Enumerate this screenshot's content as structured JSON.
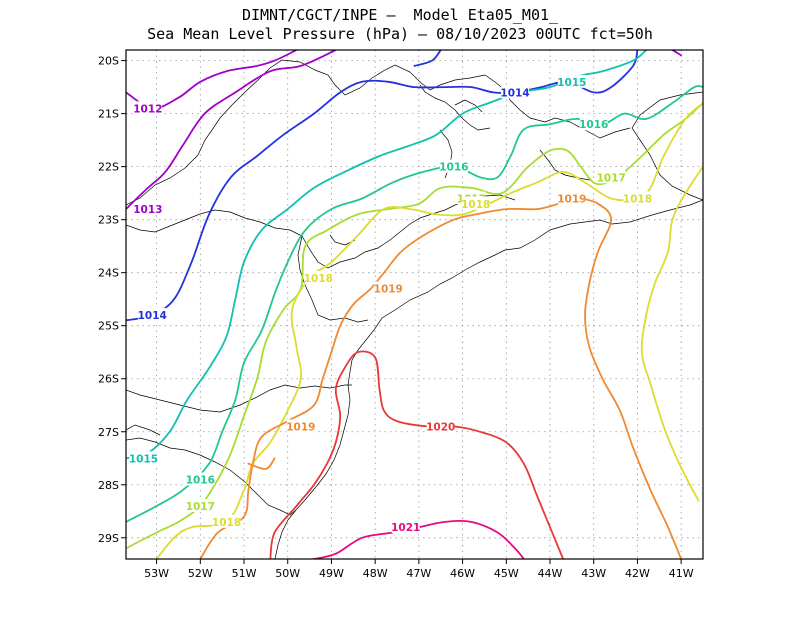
{
  "title_line1": "DIMNT/CGCT/INPE –  Model Eta05_M01_",
  "title_line2": "Sea Mean Level Pressure (hPa) – 08/10/2023 00UTC fct=50h",
  "map": {
    "lon_range": [
      -53.7,
      -40.5
    ],
    "lat_range": [
      -29.4,
      -19.8
    ],
    "lon_ticks": [
      "53W",
      "52W",
      "51W",
      "50W",
      "49W",
      "48W",
      "47W",
      "46W",
      "45W",
      "44W",
      "43W",
      "42W",
      "41W"
    ],
    "lat_ticks": [
      "20S",
      "21S",
      "22S",
      "23S",
      "24S",
      "25S",
      "26S",
      "27S",
      "28S",
      "29S"
    ],
    "grid": true
  },
  "contours": [
    {
      "value": "1012",
      "color": "#a100c8",
      "lines": [
        [
          [
            -53.7,
            -20.6
          ],
          [
            -53.1,
            -20.9
          ],
          [
            -52.5,
            -20.7
          ],
          [
            -52.0,
            -20.4
          ],
          [
            -51.4,
            -20.2
          ],
          [
            -50.7,
            -20.1
          ],
          [
            -50.3,
            -20.0
          ],
          [
            -49.8,
            -19.8
          ]
        ]
      ],
      "labels": [
        [
          -53.2,
          -20.9
        ]
      ]
    },
    {
      "value": "1013",
      "color": "#a100c8",
      "lines": [
        [
          [
            -53.7,
            -22.8
          ],
          [
            -53.2,
            -22.4
          ],
          [
            -52.8,
            -22.1
          ],
          [
            -52.4,
            -21.6
          ],
          [
            -51.9,
            -21.0
          ],
          [
            -51.2,
            -20.6
          ],
          [
            -50.4,
            -20.2
          ],
          [
            -49.7,
            -20.1
          ],
          [
            -48.9,
            -19.8
          ]
        ],
        [
          [
            -41.2,
            -19.8
          ],
          [
            -41.0,
            -19.9
          ]
        ]
      ],
      "labels": [
        [
          -53.2,
          -22.8
        ]
      ]
    },
    {
      "value": "1014",
      "color": "#2233dd",
      "lines": [
        [
          [
            -53.7,
            -24.9
          ],
          [
            -53.1,
            -24.8
          ],
          [
            -52.6,
            -24.5
          ],
          [
            -52.2,
            -23.8
          ],
          [
            -51.8,
            -22.9
          ],
          [
            -51.3,
            -22.2
          ],
          [
            -50.7,
            -21.8
          ],
          [
            -50.1,
            -21.4
          ],
          [
            -49.4,
            -21.0
          ],
          [
            -48.8,
            -20.6
          ],
          [
            -48.3,
            -20.4
          ],
          [
            -47.7,
            -20.4
          ],
          [
            -47.1,
            -20.5
          ],
          [
            -46.4,
            -20.5
          ],
          [
            -45.8,
            -20.5
          ],
          [
            -45.3,
            -20.6
          ],
          [
            -44.8,
            -20.6
          ],
          [
            -44.2,
            -20.5
          ],
          [
            -43.6,
            -20.4
          ],
          [
            -43.0,
            -20.6
          ],
          [
            -42.6,
            -20.5
          ],
          [
            -42.1,
            -20.1
          ],
          [
            -42.0,
            -19.8
          ]
        ],
        [
          [
            -46.5,
            -19.8
          ],
          [
            -46.7,
            -20.0
          ],
          [
            -47.1,
            -20.1
          ]
        ]
      ],
      "labels": [
        [
          -53.1,
          -24.8
        ],
        [
          -44.8,
          -20.6
        ]
      ]
    },
    {
      "value": "1015",
      "color": "#10c0b0",
      "lines": [
        [
          [
            -53.7,
            -27.5
          ],
          [
            -53.2,
            -27.4
          ],
          [
            -52.7,
            -27.0
          ],
          [
            -52.3,
            -26.4
          ],
          [
            -51.8,
            -25.8
          ],
          [
            -51.4,
            -25.2
          ],
          [
            -51.2,
            -24.5
          ],
          [
            -51.0,
            -23.8
          ],
          [
            -50.6,
            -23.2
          ],
          [
            -50.0,
            -22.8
          ],
          [
            -49.4,
            -22.4
          ],
          [
            -48.7,
            -22.1
          ],
          [
            -47.9,
            -21.8
          ],
          [
            -47.2,
            -21.6
          ],
          [
            -46.6,
            -21.4
          ],
          [
            -46.0,
            -21.0
          ],
          [
            -45.4,
            -20.8
          ],
          [
            -44.7,
            -20.6
          ],
          [
            -44.0,
            -20.5
          ],
          [
            -43.4,
            -20.3
          ],
          [
            -42.8,
            -20.2
          ],
          [
            -42.1,
            -20.0
          ],
          [
            -41.8,
            -19.8
          ]
        ]
      ],
      "labels": [
        [
          -53.3,
          -27.5
        ],
        [
          -43.5,
          -20.4
        ]
      ]
    },
    {
      "value": "1016",
      "color": "#20c890",
      "lines": [
        [
          [
            -53.7,
            -28.7
          ],
          [
            -53.0,
            -28.4
          ],
          [
            -52.4,
            -28.1
          ],
          [
            -51.8,
            -27.6
          ],
          [
            -51.5,
            -27.0
          ],
          [
            -51.2,
            -26.4
          ],
          [
            -51.0,
            -25.7
          ],
          [
            -50.6,
            -25.1
          ],
          [
            -50.3,
            -24.4
          ],
          [
            -50.0,
            -23.8
          ],
          [
            -49.6,
            -23.2
          ],
          [
            -49.0,
            -22.8
          ],
          [
            -48.3,
            -22.6
          ],
          [
            -47.6,
            -22.3
          ],
          [
            -46.9,
            -22.1
          ],
          [
            -46.2,
            -22.0
          ],
          [
            -45.6,
            -22.2
          ],
          [
            -45.2,
            -22.2
          ],
          [
            -44.9,
            -21.8
          ],
          [
            -44.6,
            -21.3
          ],
          [
            -44.0,
            -21.2
          ],
          [
            -43.4,
            -21.1
          ],
          [
            -42.8,
            -21.2
          ],
          [
            -42.3,
            -21.0
          ],
          [
            -41.8,
            -21.1
          ],
          [
            -41.2,
            -20.8
          ],
          [
            -40.7,
            -20.5
          ],
          [
            -40.5,
            -20.5
          ]
        ]
      ],
      "labels": [
        [
          -52.0,
          -27.9
        ],
        [
          -46.2,
          -22.0
        ],
        [
          -43.0,
          -21.2
        ]
      ]
    },
    {
      "value": "1017",
      "color": "#a8dc30",
      "lines": [
        [
          [
            -53.7,
            -29.2
          ],
          [
            -53.0,
            -28.9
          ],
          [
            -52.5,
            -28.7
          ],
          [
            -52.0,
            -28.4
          ],
          [
            -51.6,
            -27.9
          ],
          [
            -51.3,
            -27.4
          ],
          [
            -51.0,
            -26.7
          ],
          [
            -50.7,
            -26.0
          ],
          [
            -50.5,
            -25.3
          ],
          [
            -50.1,
            -24.7
          ],
          [
            -49.7,
            -24.3
          ],
          [
            -49.6,
            -23.5
          ],
          [
            -49.1,
            -23.2
          ],
          [
            -48.4,
            -22.9
          ],
          [
            -47.7,
            -22.8
          ],
          [
            -47.0,
            -22.7
          ],
          [
            -46.5,
            -22.4
          ],
          [
            -45.8,
            -22.4
          ],
          [
            -45.1,
            -22.5
          ],
          [
            -44.5,
            -22.0
          ],
          [
            -44.0,
            -21.7
          ],
          [
            -43.6,
            -21.7
          ],
          [
            -43.3,
            -22.0
          ],
          [
            -43.0,
            -22.3
          ],
          [
            -42.7,
            -22.3
          ],
          [
            -42.3,
            -22.1
          ],
          [
            -41.9,
            -21.8
          ],
          [
            -41.4,
            -21.4
          ],
          [
            -40.9,
            -21.1
          ],
          [
            -40.5,
            -20.8
          ]
        ]
      ],
      "labels": [
        [
          -52.0,
          -28.4
        ],
        [
          -45.8,
          -22.6
        ],
        [
          -42.6,
          -22.2
        ]
      ]
    },
    {
      "value": "1018",
      "color": "#dcdc30",
      "lines": [
        [
          [
            -53.0,
            -29.4
          ],
          [
            -52.6,
            -29.0
          ],
          [
            -52.2,
            -28.8
          ],
          [
            -51.4,
            -28.7
          ],
          [
            -51.0,
            -28.1
          ],
          [
            -50.8,
            -27.6
          ],
          [
            -50.4,
            -27.2
          ],
          [
            -50.0,
            -26.6
          ],
          [
            -49.7,
            -26.0
          ],
          [
            -49.8,
            -25.4
          ],
          [
            -49.9,
            -24.7
          ],
          [
            -49.5,
            -24.1
          ],
          [
            -49.0,
            -23.8
          ],
          [
            -48.4,
            -23.3
          ],
          [
            -47.8,
            -22.8
          ],
          [
            -47.2,
            -22.8
          ],
          [
            -46.6,
            -22.9
          ],
          [
            -46.0,
            -22.9
          ],
          [
            -45.4,
            -22.7
          ],
          [
            -44.9,
            -22.5
          ],
          [
            -44.3,
            -22.3
          ],
          [
            -43.7,
            -22.1
          ],
          [
            -43.2,
            -22.3
          ],
          [
            -42.6,
            -22.6
          ],
          [
            -42.0,
            -22.6
          ],
          [
            -41.7,
            -22.4
          ],
          [
            -41.4,
            -21.8
          ],
          [
            -40.9,
            -21.1
          ],
          [
            -40.5,
            -20.8
          ]
        ],
        [
          [
            -40.5,
            -22.0
          ],
          [
            -40.9,
            -22.5
          ],
          [
            -41.2,
            -23.0
          ],
          [
            -41.3,
            -23.6
          ],
          [
            -41.6,
            -24.2
          ],
          [
            -41.8,
            -24.8
          ],
          [
            -41.9,
            -25.5
          ],
          [
            -41.7,
            -26.1
          ],
          [
            -41.4,
            -26.9
          ],
          [
            -41.1,
            -27.5
          ],
          [
            -40.8,
            -28.0
          ],
          [
            -40.6,
            -28.3
          ]
        ]
      ],
      "labels": [
        [
          -51.4,
          -28.7
        ],
        [
          -49.3,
          -24.1
        ],
        [
          -45.7,
          -22.7
        ],
        [
          -42.0,
          -22.6
        ]
      ]
    },
    {
      "value": "1019",
      "color": "#f08a30",
      "lines": [
        [
          [
            -52.0,
            -29.4
          ],
          [
            -51.6,
            -28.9
          ],
          [
            -51.0,
            -28.6
          ],
          [
            -50.9,
            -28.1
          ],
          [
            -50.8,
            -27.6
          ],
          [
            -50.6,
            -27.1
          ],
          [
            -50.0,
            -26.8
          ],
          [
            -49.4,
            -26.5
          ],
          [
            -49.2,
            -26.0
          ],
          [
            -49.0,
            -25.5
          ],
          [
            -48.8,
            -25.0
          ],
          [
            -48.5,
            -24.6
          ],
          [
            -48.1,
            -24.3
          ],
          [
            -47.8,
            -24.0
          ],
          [
            -47.4,
            -23.6
          ],
          [
            -46.9,
            -23.3
          ],
          [
            -46.2,
            -23.0
          ],
          [
            -45.7,
            -22.9
          ],
          [
            -45.0,
            -22.8
          ],
          [
            -44.3,
            -22.8
          ],
          [
            -43.8,
            -22.7
          ],
          [
            -43.4,
            -22.6
          ],
          [
            -42.9,
            -22.7
          ],
          [
            -42.6,
            -23.0
          ],
          [
            -42.9,
            -23.6
          ],
          [
            -43.1,
            -24.2
          ],
          [
            -43.2,
            -24.8
          ],
          [
            -43.1,
            -25.4
          ],
          [
            -42.8,
            -26.0
          ],
          [
            -42.4,
            -26.6
          ],
          [
            -42.1,
            -27.3
          ],
          [
            -41.7,
            -28.1
          ],
          [
            -41.3,
            -28.8
          ],
          [
            -41.0,
            -29.4
          ]
        ],
        [
          [
            -50.9,
            -27.6
          ],
          [
            -50.5,
            -27.7
          ],
          [
            -50.3,
            -27.5
          ]
        ]
      ],
      "labels": [
        [
          -49.7,
          -26.9
        ],
        [
          -47.7,
          -24.3
        ],
        [
          -43.5,
          -22.6
        ]
      ]
    },
    {
      "value": "1020",
      "color": "#e83838",
      "lines": [
        [
          [
            -50.4,
            -29.4
          ],
          [
            -50.3,
            -28.9
          ],
          [
            -49.8,
            -28.4
          ],
          [
            -49.4,
            -28.0
          ],
          [
            -49.1,
            -27.6
          ],
          [
            -48.9,
            -27.2
          ],
          [
            -48.8,
            -26.7
          ],
          [
            -48.9,
            -26.2
          ],
          [
            -48.7,
            -25.8
          ],
          [
            -48.4,
            -25.5
          ],
          [
            -48.0,
            -25.6
          ],
          [
            -47.9,
            -26.2
          ],
          [
            -47.8,
            -26.6
          ],
          [
            -47.5,
            -26.8
          ],
          [
            -46.8,
            -26.9
          ],
          [
            -46.2,
            -26.9
          ],
          [
            -45.6,
            -27.0
          ],
          [
            -45.0,
            -27.2
          ],
          [
            -44.6,
            -27.6
          ],
          [
            -44.3,
            -28.2
          ],
          [
            -44.0,
            -28.8
          ],
          [
            -43.7,
            -29.4
          ]
        ]
      ],
      "labels": [
        [
          -46.5,
          -26.9
        ]
      ]
    },
    {
      "value": "1021",
      "color": "#e80a80",
      "lines": [
        [
          [
            -49.4,
            -29.4
          ],
          [
            -48.9,
            -29.3
          ],
          [
            -48.3,
            -29.0
          ],
          [
            -47.6,
            -28.9
          ],
          [
            -47.0,
            -28.8
          ],
          [
            -46.4,
            -28.7
          ],
          [
            -45.8,
            -28.7
          ],
          [
            -45.2,
            -28.9
          ],
          [
            -44.8,
            -29.2
          ],
          [
            -44.6,
            -29.4
          ]
        ]
      ],
      "labels": [
        [
          -47.3,
          -28.8
        ]
      ]
    }
  ]
}
